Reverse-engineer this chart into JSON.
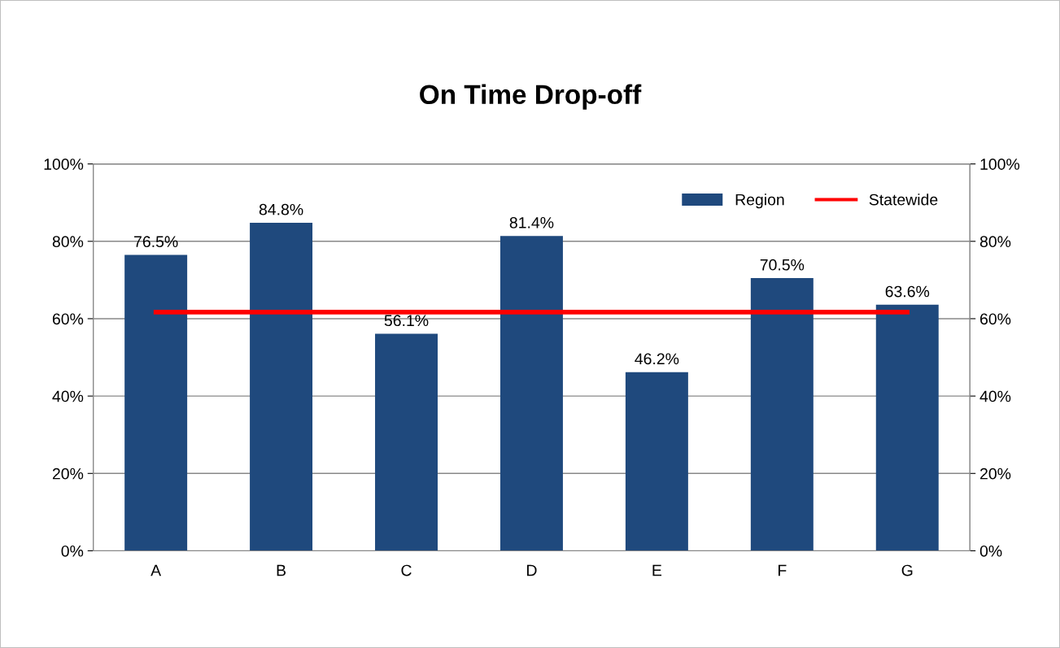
{
  "chart_data": {
    "type": "bar",
    "title": "On Time Drop-off",
    "categories": [
      "A",
      "B",
      "C",
      "D",
      "E",
      "F",
      "G"
    ],
    "series": [
      {
        "name": "Region",
        "color": "#1f497d",
        "values": [
          76.5,
          84.8,
          56.1,
          81.4,
          46.2,
          70.5,
          63.6
        ],
        "value_labels": [
          "76.5%",
          "84.8%",
          "56.1%",
          "81.4%",
          "46.2%",
          "70.5%",
          "63.6%"
        ]
      },
      {
        "name": "Statewide",
        "type": "line",
        "color": "#ff0000",
        "values": [
          61.7,
          61.7,
          61.7,
          61.7,
          61.7,
          61.7,
          61.7
        ]
      }
    ],
    "ylim": [
      0,
      100
    ],
    "yticks": [
      {
        "value": 0,
        "label": "0%"
      },
      {
        "value": 20,
        "label": "20%"
      },
      {
        "value": 40,
        "label": "40%"
      },
      {
        "value": 60,
        "label": "60%"
      },
      {
        "value": 80,
        "label": "80%"
      },
      {
        "value": 100,
        "label": "100%"
      }
    ],
    "y2lim": [
      0,
      100
    ],
    "y2ticks": [
      {
        "value": 0,
        "label": "0%"
      },
      {
        "value": 20,
        "label": "20%"
      },
      {
        "value": 40,
        "label": "40%"
      },
      {
        "value": 60,
        "label": "60%"
      },
      {
        "value": 80,
        "label": "80%"
      },
      {
        "value": 100,
        "label": "100%"
      }
    ],
    "grid": "y",
    "legend": "top right"
  }
}
